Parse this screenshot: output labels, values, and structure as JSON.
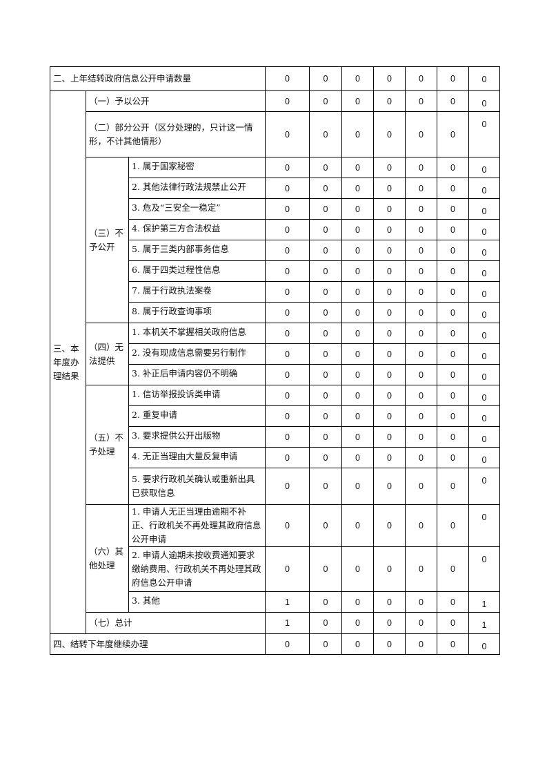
{
  "rows": {
    "carryover": {
      "label": "二、上年结转政府信息公开申请数量",
      "values": [
        "0",
        "0",
        "0",
        "0",
        "0",
        "0",
        "0"
      ]
    },
    "section3_label": "三、本年度办理结果",
    "open": {
      "label": "（一）予以公开",
      "values": [
        "0",
        "0",
        "0",
        "0",
        "0",
        "0",
        "0"
      ]
    },
    "partial": {
      "label": "（二）部分公开（区分处理的，只计这一情形，不计其他情形）",
      "values": [
        "0",
        "0",
        "0",
        "0",
        "0",
        "0",
        "0"
      ]
    },
    "not_open": {
      "label": "（三）不予公开",
      "items": [
        {
          "label": "1. 属于国家秘密",
          "values": [
            "0",
            "0",
            "0",
            "0",
            "0",
            "0",
            "0"
          ]
        },
        {
          "label": "2. 其他法律行政法规禁止公开",
          "values": [
            "0",
            "0",
            "0",
            "0",
            "0",
            "0",
            "0"
          ]
        },
        {
          "label": "3. 危及“三安全一稳定”",
          "values": [
            "0",
            "0",
            "0",
            "0",
            "0",
            "0",
            "0"
          ]
        },
        {
          "label": "4. 保护第三方合法权益",
          "values": [
            "0",
            "0",
            "0",
            "0",
            "0",
            "0",
            "0"
          ]
        },
        {
          "label": "5. 属于三类内部事务信息",
          "values": [
            "0",
            "0",
            "0",
            "0",
            "0",
            "0",
            "0"
          ]
        },
        {
          "label": "6. 属于四类过程性信息",
          "values": [
            "0",
            "0",
            "0",
            "0",
            "0",
            "0",
            "0"
          ]
        },
        {
          "label": "7. 属于行政执法案卷",
          "values": [
            "0",
            "0",
            "0",
            "0",
            "0",
            "0",
            "0"
          ]
        },
        {
          "label": "8. 属于行政查询事项",
          "values": [
            "0",
            "0",
            "0",
            "0",
            "0",
            "0",
            "0"
          ]
        }
      ]
    },
    "cannot_provide": {
      "label": "（四）无法提供",
      "items": [
        {
          "label": "1. 本机关不掌握相关政府信息",
          "values": [
            "0",
            "0",
            "0",
            "0",
            "0",
            "0",
            "0"
          ]
        },
        {
          "label": "2. 没有现成信息需要另行制作",
          "values": [
            "0",
            "0",
            "0",
            "0",
            "0",
            "0",
            "0"
          ]
        },
        {
          "label": "3. 补正后申请内容仍不明确",
          "values": [
            "0",
            "0",
            "0",
            "0",
            "0",
            "0",
            "0"
          ]
        }
      ]
    },
    "not_processed": {
      "label": "（五）不予处理",
      "items": [
        {
          "label": "1. 信访举报投诉类申请",
          "values": [
            "0",
            "0",
            "0",
            "0",
            "0",
            "0",
            "0"
          ]
        },
        {
          "label": "2. 重复申请",
          "values": [
            "0",
            "0",
            "0",
            "0",
            "0",
            "0",
            "0"
          ]
        },
        {
          "label": "3. 要求提供公开出版物",
          "values": [
            "0",
            "0",
            "0",
            "0",
            "0",
            "0",
            "0"
          ]
        },
        {
          "label": "4. 无正当理由大量反复申请",
          "values": [
            "0",
            "0",
            "0",
            "0",
            "0",
            "0",
            "0"
          ]
        },
        {
          "label": "5. 要求行政机关确认或重新出具已获取信息",
          "values": [
            "0",
            "0",
            "0",
            "0",
            "0",
            "0",
            "0"
          ]
        }
      ]
    },
    "other": {
      "label": "（六）其他处理",
      "items": [
        {
          "label": "1. 申请人无正当理由逾期不补正、行政机关不再处理其政府信息公开申请",
          "values": [
            "0",
            "0",
            "0",
            "0",
            "0",
            "0",
            "0"
          ]
        },
        {
          "label": "2. 申请人逾期未按收费通知要求缴纳费用、行政机关不再处理其政府信息公开申请",
          "values": [
            "0",
            "0",
            "0",
            "0",
            "0",
            "0",
            "0"
          ]
        },
        {
          "label": "3. 其他",
          "values": [
            "1",
            "0",
            "0",
            "0",
            "0",
            "0",
            "1"
          ]
        }
      ]
    },
    "total": {
      "label": "（七）总计",
      "values": [
        "1",
        "0",
        "0",
        "0",
        "0",
        "0",
        "1"
      ]
    },
    "carry_forward": {
      "label": "四、结转下年度继续办理",
      "values": [
        "0",
        "0",
        "0",
        "0",
        "0",
        "0",
        "0"
      ]
    }
  }
}
